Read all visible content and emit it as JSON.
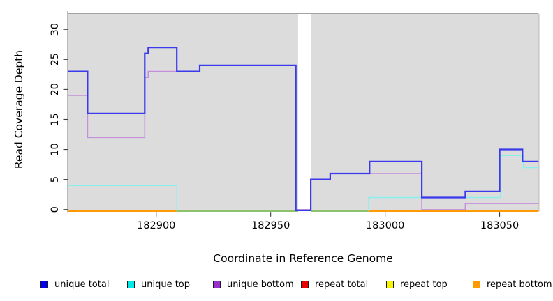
{
  "figure": {
    "xlabel": "Coordinate in Reference Genome",
    "ylabel": "Read Coverage Depth"
  },
  "legend": {
    "items": [
      {
        "label": "unique total",
        "color": "#0000ee"
      },
      {
        "label": "unique top",
        "color": "#00e8e8"
      },
      {
        "label": "unique bottom",
        "color": "#9b30d0"
      },
      {
        "label": "repeat total",
        "color": "#e60000"
      },
      {
        "label": "repeat top",
        "color": "#f5f500"
      },
      {
        "label": "repeat bottom",
        "color": "#ff9b00"
      }
    ]
  },
  "chart_data": {
    "type": "line",
    "subtype": "step-coverage-plot",
    "title": "",
    "xlabel": "Coordinate in Reference Genome",
    "ylabel": "Read Coverage Depth",
    "xlim": [
      182861.5,
      183067
    ],
    "ylim": [
      0,
      32.6
    ],
    "x_ticks": [
      182900,
      182950,
      183000,
      183050
    ],
    "y_ticks": [
      0,
      5,
      10,
      15,
      20,
      25,
      30
    ],
    "grid": false,
    "legend_position": "bottom",
    "panel_bg": "#dcdcdc",
    "gap_no_data": {
      "from": 182962,
      "to": 182967.5
    },
    "series": [
      {
        "name": "unique total",
        "color": "#3a3aec",
        "visible": true,
        "steps": [
          [
            182861.5,
            23
          ],
          [
            182870,
            16
          ],
          [
            182895,
            26
          ],
          [
            182896.5,
            27
          ],
          [
            182909,
            23
          ],
          [
            182919,
            24
          ],
          [
            182961,
            0
          ],
          [
            182967.5,
            5
          ],
          [
            182976,
            6
          ],
          [
            182993.2,
            8
          ],
          [
            183016,
            2
          ],
          [
            183035,
            3
          ],
          [
            183050,
            10
          ],
          [
            183060,
            8
          ],
          [
            183067,
            8
          ]
        ]
      },
      {
        "name": "unique top",
        "color": "#87efec",
        "visible": true,
        "skip_zero": true,
        "steps": [
          [
            182861.5,
            4
          ],
          [
            182909,
            0
          ],
          [
            182992.8,
            2
          ],
          [
            183050.4,
            9
          ],
          [
            183060.4,
            7
          ],
          [
            183067,
            7
          ]
        ]
      },
      {
        "name": "unique bottom",
        "color": "#c48fdc",
        "visible": true,
        "steps": [
          [
            182861.5,
            19
          ],
          [
            182870,
            12
          ],
          [
            182895,
            22
          ],
          [
            182896.5,
            23
          ],
          [
            182919,
            24
          ],
          [
            182961,
            0
          ],
          [
            182967.5,
            5
          ],
          [
            182976,
            6
          ],
          [
            183016,
            0
          ],
          [
            183035,
            1
          ],
          [
            183067,
            1
          ]
        ]
      },
      {
        "name": "repeat total",
        "color": "#e60000",
        "visible": false,
        "steps": [
          [
            182861.5,
            0
          ],
          [
            183067,
            0
          ]
        ]
      },
      {
        "name": "repeat top",
        "color": "#f5f500",
        "visible": false,
        "steps": [
          [
            182861.5,
            0
          ],
          [
            183067,
            0
          ]
        ]
      },
      {
        "name": "repeat bottom",
        "color": "#ff9b00",
        "visible": true,
        "zero_segments": [
          [
            182861.5,
            182962
          ],
          [
            182967.5,
            183067
          ]
        ]
      }
    ],
    "zero_overlap_green": {
      "color": "#7cc87c",
      "segments": [
        [
          182909,
          182962
        ],
        [
          182967.5,
          182993
        ]
      ]
    }
  }
}
